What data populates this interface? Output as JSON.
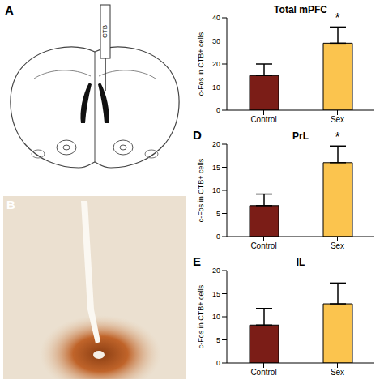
{
  "chart_data": [
    {
      "type": "bar",
      "title": "Total mPFC",
      "y_label": "c-Fos in CTB+ cells",
      "categories": [
        "Control",
        "Sex"
      ],
      "values": [
        15,
        29
      ],
      "error": [
        5,
        7
      ],
      "colors": [
        "#7b1d17",
        "#fbc44e"
      ],
      "ylim": [
        0,
        40
      ],
      "yticks": [
        0,
        10,
        20,
        30,
        40
      ],
      "annotations": [
        {
          "text": "*",
          "category": "Sex"
        }
      ]
    },
    {
      "type": "bar",
      "panel": "D",
      "title": "PrL",
      "y_label": "c-Fos in CTB+ cells",
      "categories": [
        "Control",
        "Sex"
      ],
      "values": [
        6.7,
        16
      ],
      "error": [
        2.5,
        3.6
      ],
      "colors": [
        "#7b1d17",
        "#fbc44e"
      ],
      "ylim": [
        0,
        20
      ],
      "yticks": [
        0,
        5,
        10,
        15,
        20
      ],
      "annotations": [
        {
          "text": "*",
          "category": "Sex"
        }
      ]
    },
    {
      "type": "bar",
      "panel": "E",
      "title": "IL",
      "y_label": "c-Fos in CTB+ cells",
      "categories": [
        "Control",
        "Sex"
      ],
      "values": [
        8.2,
        12.8
      ],
      "error": [
        3.6,
        4.5
      ],
      "colors": [
        "#7b1d17",
        "#fbc44e"
      ],
      "ylim": [
        0,
        20
      ],
      "yticks": [
        0,
        5,
        10,
        15,
        20
      ]
    }
  ],
  "panels": [
    {
      "panel": "A",
      "injection_label": "CTB"
    },
    {
      "panel": "B"
    }
  ]
}
